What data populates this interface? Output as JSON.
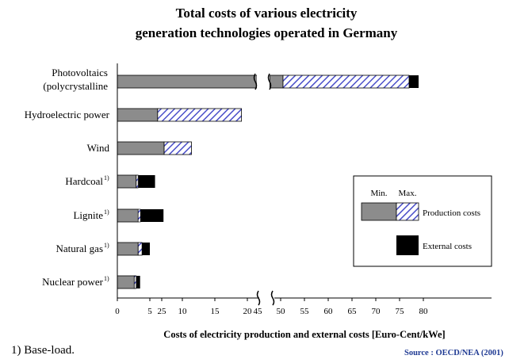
{
  "chart_data": {
    "type": "bar",
    "orientation": "horizontal",
    "stacked": true,
    "title": [
      "Total costs of various electricity",
      "generation technologies operated in Germany"
    ],
    "xlabel": "Costs of electricity production and external costs [Euro-Cent/kWe]",
    "x_ticks_left": [
      "0",
      "5",
      "10",
      "15",
      "20",
      "25"
    ],
    "x_ticks_right": [
      "45",
      "50",
      "55",
      "60",
      "65",
      "70",
      "75",
      "80"
    ],
    "axis_break": {
      "from": 22,
      "to": 48
    },
    "grid": false,
    "categories": [
      {
        "label": "Photovoltaics",
        "label2": "(polycrystalline",
        "sup": ""
      },
      {
        "label": "Hydroelectric power",
        "sup": ""
      },
      {
        "label": "Wind",
        "sup": ""
      },
      {
        "label": "Hardcoal",
        "sup": "1)"
      },
      {
        "label": "Lignite",
        "sup": "1)"
      },
      {
        "label": "Natural gas",
        "sup": "1)"
      },
      {
        "label": "Nuclear power",
        "sup": "1)"
      }
    ],
    "series": [
      {
        "key": "min",
        "values": [
          50.5,
          6.2,
          7.2,
          2.9,
          3.2,
          3.2,
          2.6
        ]
      },
      {
        "key": "max",
        "values": [
          77,
          19.1,
          11.4,
          3.2,
          3.2,
          3.8,
          2.9
        ]
      },
      {
        "key": "external",
        "values": [
          79,
          19.1,
          11.4,
          5.8,
          7.1,
          5.0,
          3.5
        ]
      }
    ],
    "legend": {
      "position": "right",
      "min_label": "Min.",
      "max_label": "Max.",
      "production_label": "Production costs",
      "external_label": "External costs"
    },
    "colors": {
      "min": "#8c8c8c",
      "max_hatch": "#4a4fc9",
      "external": "#000000"
    }
  },
  "footnote": "1)  Base-load.",
  "source": "Source : OECD/NEA (2001)"
}
